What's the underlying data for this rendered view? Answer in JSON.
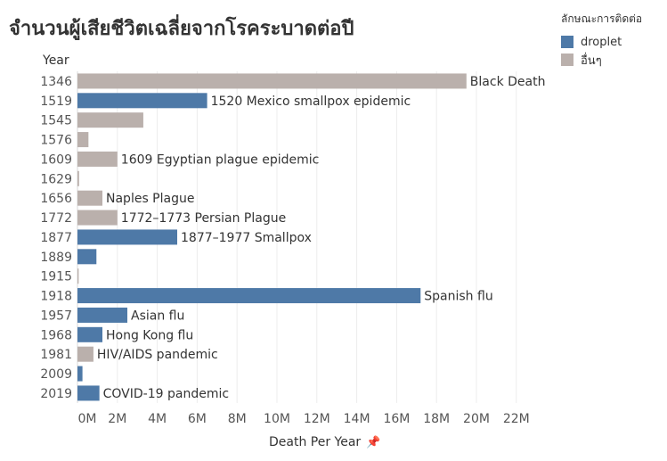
{
  "chart_data": {
    "type": "bar",
    "orientation": "horizontal",
    "title": "จำนวนผู้เสียชีวิตเฉลี่ยจากโรคระบาดต่อปี",
    "category_header": "Year",
    "xlabel": "Death Per Year",
    "xlim": [
      0,
      23500000
    ],
    "x_ticks": [
      0,
      2000000,
      4000000,
      6000000,
      8000000,
      10000000,
      12000000,
      14000000,
      16000000,
      18000000,
      20000000,
      22000000
    ],
    "x_tick_labels": [
      "0M",
      "2M",
      "4M",
      "6M",
      "8M",
      "10M",
      "12M",
      "14M",
      "16M",
      "18M",
      "20M",
      "22M"
    ],
    "grid": true,
    "legend": {
      "title": "ลักษณะการติดต่อ",
      "placement": "top-right",
      "items": [
        {
          "name": "droplet",
          "color": "#4e79a7"
        },
        {
          "name": "อื่นๆ",
          "color": "#bab0ac"
        }
      ]
    },
    "bars": [
      {
        "year": "1346",
        "value": 19500000,
        "type": "อื่นๆ",
        "label": "Black Death"
      },
      {
        "year": "1519",
        "value": 6500000,
        "type": "droplet",
        "label": "1520 Mexico smallpox epidemic"
      },
      {
        "year": "1545",
        "value": 3300000,
        "type": "อื่นๆ",
        "label": ""
      },
      {
        "year": "1576",
        "value": 550000,
        "type": "อื่นๆ",
        "label": ""
      },
      {
        "year": "1609",
        "value": 2000000,
        "type": "อื่นๆ",
        "label": "1609 Egyptian plague epidemic"
      },
      {
        "year": "1629",
        "value": 80000,
        "type": "อื่นๆ",
        "label": ""
      },
      {
        "year": "1656",
        "value": 1250000,
        "type": "อื่นๆ",
        "label": "Naples Plague"
      },
      {
        "year": "1772",
        "value": 2000000,
        "type": "อื่นๆ",
        "label": "1772–1773 Persian Plague"
      },
      {
        "year": "1877",
        "value": 5000000,
        "type": "droplet",
        "label": "1877–1977 Smallpox"
      },
      {
        "year": "1889",
        "value": 950000,
        "type": "droplet",
        "label": ""
      },
      {
        "year": "1915",
        "value": 60000,
        "type": "อื่นๆ",
        "label": ""
      },
      {
        "year": "1918",
        "value": 17200000,
        "type": "droplet",
        "label": "Spanish flu"
      },
      {
        "year": "1957",
        "value": 2500000,
        "type": "droplet",
        "label": "Asian flu"
      },
      {
        "year": "1968",
        "value": 1250000,
        "type": "droplet",
        "label": "Hong Kong flu"
      },
      {
        "year": "1981",
        "value": 800000,
        "type": "อื่นๆ",
        "label": "HIV/AIDS pandemic"
      },
      {
        "year": "2009",
        "value": 250000,
        "type": "droplet",
        "label": ""
      },
      {
        "year": "2019",
        "value": 1100000,
        "type": "droplet",
        "label": "COVID-19 pandemic"
      }
    ]
  },
  "icons": {
    "xlabel_pin": "pin-icon",
    "pin_glyph": "📌"
  }
}
